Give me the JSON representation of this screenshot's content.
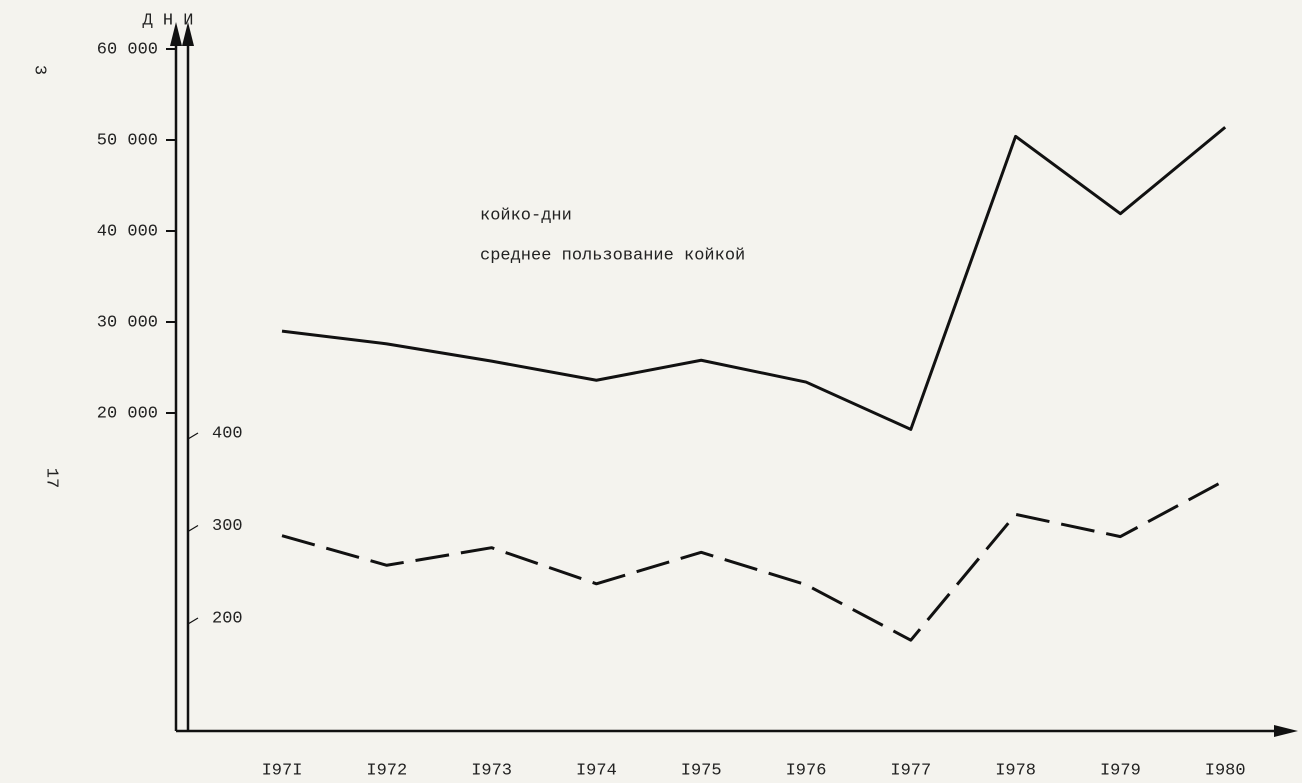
{
  "chart_data": {
    "type": "line",
    "y_axis_label": "Д Н И",
    "page_numbers": [
      "3",
      "17"
    ],
    "categories": [
      "I97I",
      "I972",
      "I973",
      "I974",
      "I975",
      "I976",
      "I977",
      "I978",
      "I979",
      "I980"
    ],
    "series": [
      {
        "name": "койко-дни",
        "color": "#111111",
        "dash": "solid",
        "values": [
          29000,
          27600,
          25700,
          23600,
          25800,
          23400,
          18200,
          50400,
          41900,
          51400
        ]
      },
      {
        "name": "среднее пользование койкой",
        "color": "#111111",
        "dash": "dashed",
        "axis": "y2",
        "values": [
          289,
          257,
          276,
          237,
          271,
          236,
          176,
          312,
          288,
          349
        ]
      }
    ],
    "ylim": [
      20000,
      60000
    ],
    "yticks": [
      {
        "value": 20000,
        "label": "20 000"
      },
      {
        "value": 30000,
        "label": "30 000"
      },
      {
        "value": 40000,
        "label": "40 000"
      },
      {
        "value": 50000,
        "label": "50 000"
      },
      {
        "value": 60000,
        "label": "60 000"
      }
    ],
    "y2lim": [
      200,
      400
    ],
    "y2ticks": [
      200,
      300,
      400
    ]
  }
}
